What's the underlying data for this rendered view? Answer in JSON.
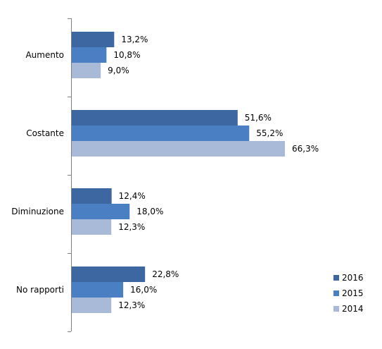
{
  "chart_data": {
    "type": "bar",
    "orientation": "horizontal",
    "categories": [
      "Aumento",
      "Costante",
      "Diminuzione",
      "No rapporti"
    ],
    "series": [
      {
        "name": "2016",
        "color": "#3d67a0",
        "values": [
          13.2,
          51.6,
          12.4,
          22.8
        ],
        "labels": [
          "13,2%",
          "51,6%",
          "12,4%",
          "22,8%"
        ]
      },
      {
        "name": "2015",
        "color": "#4b7fc4",
        "values": [
          10.8,
          55.2,
          18.0,
          16.0
        ],
        "labels": [
          "10,8%",
          "55,2%",
          "18,0%",
          "16,0%"
        ]
      },
      {
        "name": "2014",
        "color": "#a9b9d8",
        "values": [
          9.0,
          66.3,
          12.3,
          12.3
        ],
        "labels": [
          "9,0%",
          "66,3%",
          "12,3%",
          "12,3%"
        ]
      }
    ],
    "xlim": [
      0,
      100
    ],
    "grid": false,
    "legend_position": "bottom-right",
    "title": "",
    "xlabel": "",
    "ylabel": ""
  }
}
